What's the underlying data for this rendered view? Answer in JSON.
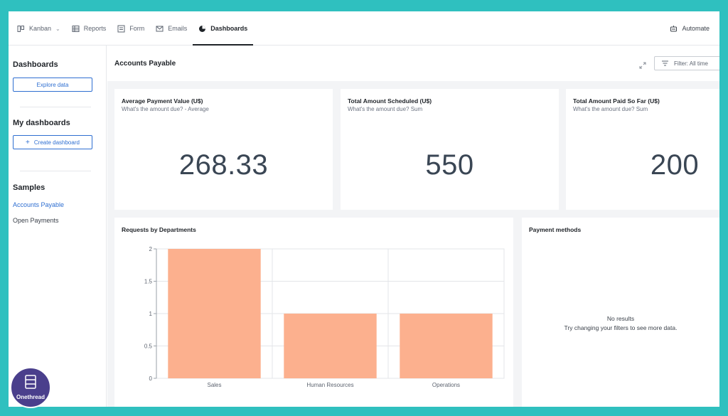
{
  "nav": {
    "tabs": [
      {
        "label": "Kanban",
        "icon": "kanban-icon",
        "has_dropdown": true
      },
      {
        "label": "Reports",
        "icon": "table-icon"
      },
      {
        "label": "Form",
        "icon": "form-icon"
      },
      {
        "label": "Emails",
        "icon": "mail-icon"
      },
      {
        "label": "Dashboards",
        "icon": "pie-chart-icon",
        "active": true
      }
    ],
    "automate_label": "Automate"
  },
  "sidebar": {
    "dashboards_heading": "Dashboards",
    "explore_label": "Explore data",
    "my_dashboards_heading": "My dashboards",
    "create_label": "Create dashboard",
    "create_icon_glyph": "+",
    "samples_heading": "Samples",
    "samples": [
      {
        "label": "Accounts Payable",
        "active": true
      },
      {
        "label": "Open Payments"
      }
    ]
  },
  "main": {
    "title": "Accounts Payable",
    "filter_label": "Filter: All time"
  },
  "cards": [
    {
      "title": "Average Payment Value (U$)",
      "subtitle": "What's the amount due? - Average",
      "value": "268.33"
    },
    {
      "title": "Total Amount Scheduled (U$)",
      "subtitle": "What's the amount due? Sum",
      "value": "550"
    },
    {
      "title": "Total Amount Paid So Far (U$)",
      "subtitle": "What's the amount due? Sum",
      "value": "200"
    }
  ],
  "chart_data": {
    "type": "bar",
    "title": "Requests by Departments",
    "categories": [
      "Sales",
      "Human Resources",
      "Operations"
    ],
    "values": [
      2,
      1,
      1
    ],
    "ylim": [
      0,
      2
    ],
    "yticks": [
      "0",
      "0.5",
      "1",
      "1.5",
      "2"
    ],
    "grid": true,
    "bar_color": "#fcb08e"
  },
  "payment_methods": {
    "title": "Payment methods",
    "empty_title": "No results",
    "empty_hint": "Try changing your filters to see more data."
  },
  "logo": {
    "text": "Onethread"
  },
  "colors": {
    "accent": "#2f6fd1",
    "frame": "#2fc0bf",
    "logo_bg": "#4a3f8c"
  }
}
